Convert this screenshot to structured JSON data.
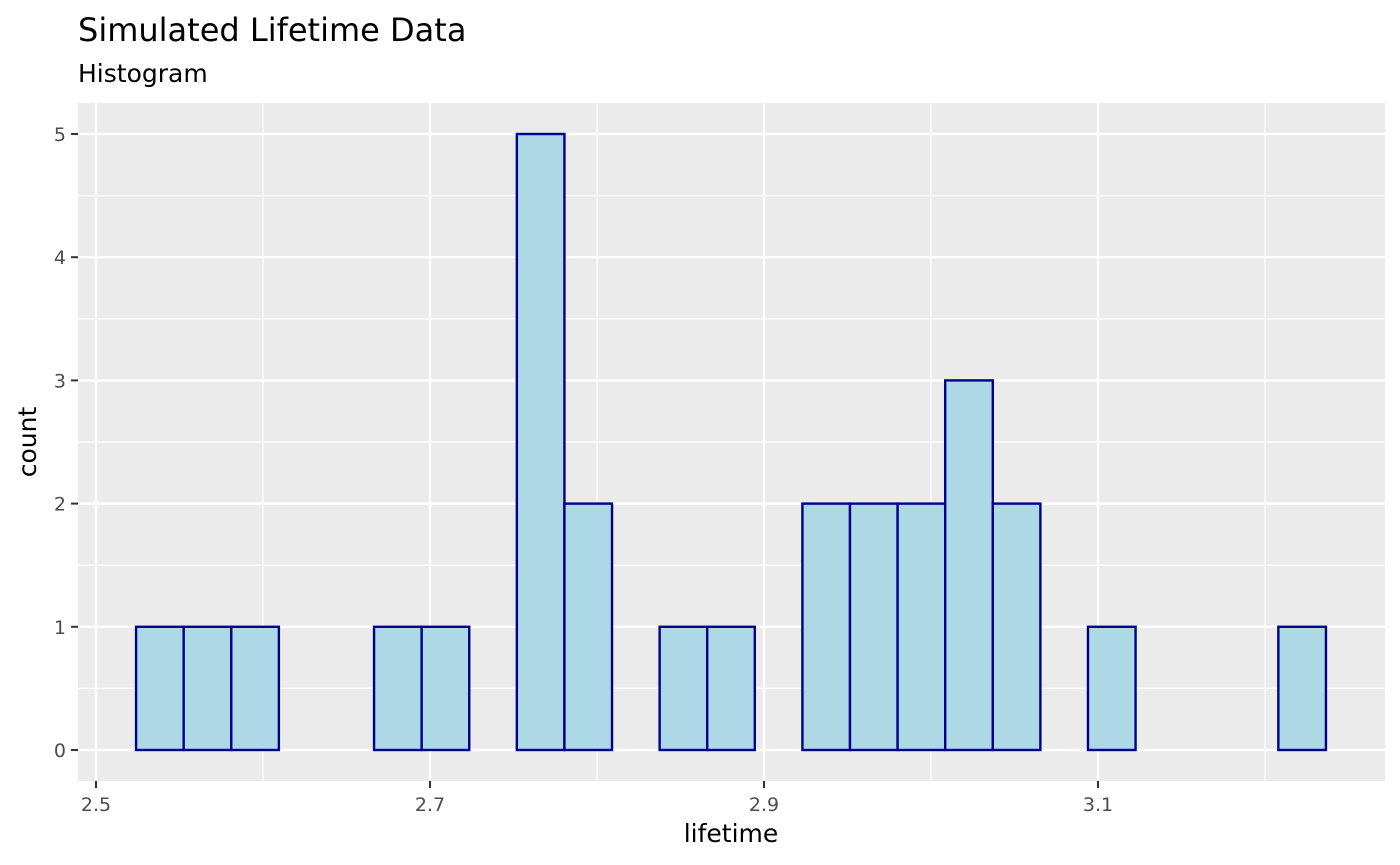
{
  "chart_data": {
    "type": "histogram",
    "title": "Simulated Lifetime Data",
    "subtitle": "Histogram",
    "xlabel": "lifetime",
    "ylabel": "count",
    "xlim": [
      2.5,
      3.3
    ],
    "ylim": [
      0,
      5
    ],
    "x_ticks": [
      2.5,
      2.7,
      2.9,
      3.1
    ],
    "x_tick_labels": [
      "2.5",
      "2.7",
      "2.9",
      "3.1"
    ],
    "y_ticks": [
      0,
      1,
      2,
      3,
      4,
      5
    ],
    "y_tick_labels": [
      "0",
      "1",
      "2",
      "3",
      "4",
      "5"
    ],
    "bin_start": 2.524,
    "bin_width": 0.0285,
    "counts": [
      1,
      1,
      1,
      0,
      0,
      1,
      1,
      0,
      5,
      2,
      0,
      1,
      1,
      0,
      2,
      2,
      2,
      3,
      2,
      0,
      1,
      0,
      0,
      0,
      1
    ],
    "grid": true,
    "legend": "none",
    "colors": {
      "panel_background": "#ebebeb",
      "grid_major": "#ffffff",
      "bar_fill": "#add8e6",
      "bar_outline": "#00008b",
      "tick_text": "#4d4d4d"
    }
  }
}
